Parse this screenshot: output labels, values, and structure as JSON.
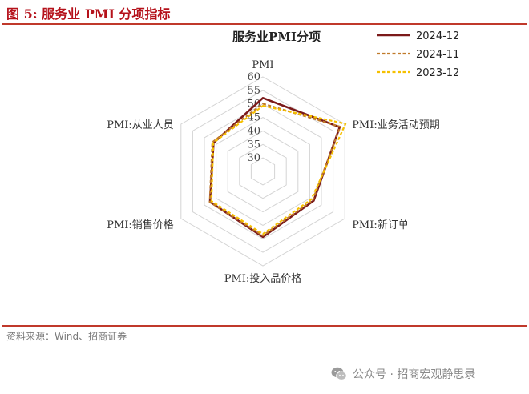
{
  "figure": {
    "title": "图 5:  服务业 PMI 分项指标",
    "source": "资料来源：Wind、招商证券",
    "watermark": "公众号 · 招商宏观静思录"
  },
  "chart_data": {
    "type": "radar",
    "title": "服务业PMI分项",
    "axes": [
      "PMI",
      "PMI:业务活动预期",
      "PMI:新订单",
      "PMI:投入品价格",
      "PMI:销售价格",
      "PMI:从业人员"
    ],
    "r_ticks": [
      30,
      35,
      40,
      45,
      50,
      55,
      60
    ],
    "r_range": [
      25,
      60
    ],
    "grid": true,
    "legend_position": "top-right",
    "series": [
      {
        "name": "2024-12",
        "values": [
          52.2,
          57.8,
          46.7,
          49.3,
          47.6,
          46.1
        ],
        "color": "#7b1a1a",
        "dash": "solid"
      },
      {
        "name": "2024-11",
        "values": [
          50.1,
          58.1,
          46.3,
          48.8,
          47.7,
          46.6
        ],
        "color": "#c07a2a",
        "dash": "dashed"
      },
      {
        "name": "2023-12",
        "values": [
          49.3,
          60.3,
          45.7,
          48.2,
          47.0,
          46.2
        ],
        "color": "#f5c000",
        "dash": "dashed"
      }
    ]
  }
}
